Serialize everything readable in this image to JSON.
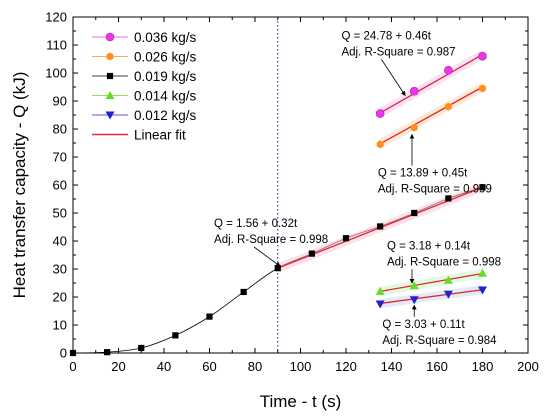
{
  "chart_data": {
    "type": "scatter",
    "xlabel": "Time - t (s)",
    "ylabel": "Heat transfer capacity - Q (kJ)",
    "xlim": [
      0,
      200
    ],
    "ylim": [
      0,
      120
    ],
    "xticks": [
      0,
      20,
      40,
      60,
      80,
      100,
      120,
      140,
      160,
      180,
      200
    ],
    "yticks": [
      0,
      10,
      20,
      30,
      40,
      50,
      60,
      70,
      80,
      90,
      100,
      110,
      120
    ],
    "grid": false,
    "legend_position": "top-left",
    "vline_x": 90,
    "series": [
      {
        "name": "0.036 kg/s",
        "marker": "circle",
        "color": "#e838e8",
        "x": [
          135,
          150,
          165,
          180
        ],
        "y": [
          85.5,
          93.5,
          101,
          106
        ]
      },
      {
        "name": "0.026 kg/s",
        "marker": "hexagon",
        "color": "#ff9020",
        "x": [
          135,
          150,
          165,
          180
        ],
        "y": [
          74.5,
          80.5,
          88,
          94.5
        ]
      },
      {
        "name": "0.019 kg/s",
        "marker": "square",
        "color": "#000000",
        "x": [
          0,
          15,
          30,
          45,
          60,
          75,
          90,
          105,
          120,
          135,
          150,
          165,
          180
        ],
        "y": [
          0,
          0.3,
          1.8,
          6.3,
          13,
          21.8,
          30.3,
          35.5,
          41,
          45.2,
          50,
          55.2,
          59.2
        ]
      },
      {
        "name": "0.014 kg/s",
        "marker": "triangle-up",
        "color": "#66dd22",
        "x": [
          135,
          150,
          165,
          180
        ],
        "y": [
          22,
          24,
          26,
          28.5
        ]
      },
      {
        "name": "0.012 kg/s",
        "marker": "triangle-down",
        "color": "#2222cc",
        "x": [
          135,
          150,
          165,
          180
        ],
        "y": [
          17.5,
          19,
          21,
          22.5
        ]
      }
    ],
    "fits": [
      {
        "label": "Linear fit",
        "color": "#e8242a",
        "x": [
          135,
          180
        ],
        "y": [
          85.7,
          106.6
        ]
      },
      {
        "label": "Linear fit",
        "color": "#e8242a",
        "x": [
          135,
          180
        ],
        "y": [
          74.7,
          95.0
        ]
      },
      {
        "label": "Linear fit",
        "color": "#e8242a",
        "x": [
          90,
          180
        ],
        "y": [
          30.3,
          59.2
        ]
      },
      {
        "label": "Linear fit",
        "color": "#e8242a",
        "x": [
          135,
          180
        ],
        "y": [
          22.0,
          28.4
        ]
      },
      {
        "label": "Linear fit",
        "color": "#e8242a",
        "x": [
          135,
          180
        ],
        "y": [
          17.7,
          22.6
        ]
      }
    ],
    "annotations": [
      {
        "eq": "Q = 24.78 + 0.46t",
        "r2": "Adj. R-Square = 0.987",
        "text_x": 118,
        "text_y": 112,
        "arrow_to": [
          146,
          92
        ]
      },
      {
        "eq": "Q = 13.89 + 0.45t",
        "r2": "Adj. R-Square = 0.999",
        "text_x": 134,
        "text_y": 63,
        "arrow_to": [
          149,
          78
        ]
      },
      {
        "eq": "Q = 1.56 + 0.32t",
        "r2": "Adj. R-Square = 0.998",
        "text_x": 62,
        "text_y": 45,
        "arrow_to": [
          91,
          31
        ]
      },
      {
        "eq": "Q = 3.18 + 0.14t",
        "r2": "Adj. R-Square = 0.998",
        "text_x": 138,
        "text_y": 37,
        "arrow_to": [
          149,
          25
        ]
      },
      {
        "eq": "Q = 3.03 + 0.11t",
        "r2": "Adj. R-Square = 0.984",
        "text_x": 136,
        "text_y": 9,
        "arrow_to": [
          150,
          17
        ]
      }
    ]
  },
  "legend": {
    "items": [
      "0.036 kg/s",
      "0.026 kg/s",
      "0.019 kg/s",
      "0.014 kg/s",
      "0.012 kg/s",
      "Linear fit"
    ]
  }
}
